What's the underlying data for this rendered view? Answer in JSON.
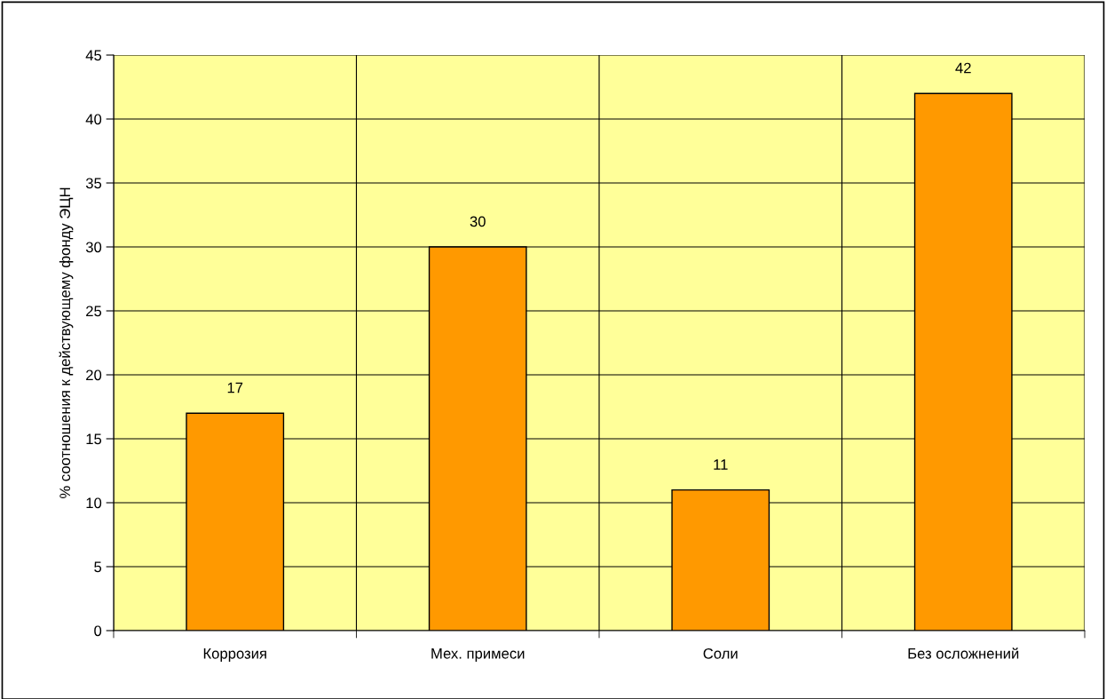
{
  "chart_data": {
    "type": "bar",
    "ylabel": "% соотношения к действующему фонду ЭЦН",
    "categories": [
      "Коррозия",
      "Мех. примеси",
      "Соли",
      "Без осложнений"
    ],
    "values": [
      17,
      30,
      11,
      42
    ],
    "color": "#ff9900",
    "ylim": [
      0,
      45
    ],
    "yticks": [
      0,
      5,
      10,
      15,
      20,
      25,
      30,
      35,
      40,
      45
    ],
    "grid": true,
    "data_labels": true
  }
}
